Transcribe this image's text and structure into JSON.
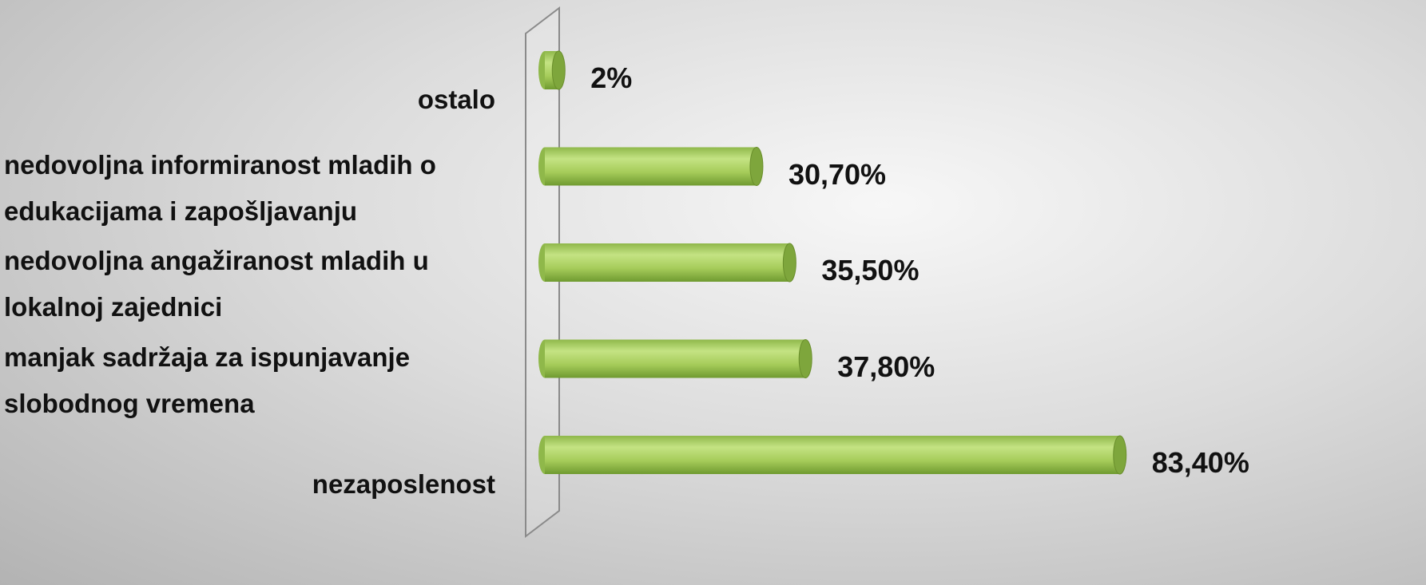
{
  "chart_data": {
    "type": "bar",
    "orientation": "horizontal",
    "categories": [
      "ostalo",
      "nedovoljna informiranost mladih o edukacijama i zapošljavanju",
      "nedovoljna angažiranost mladih u lokalnoj zajednici",
      "manjak sadržaja za ispunjavanje slobodnog vremena",
      "nezaposlenost"
    ],
    "values": [
      2,
      30.7,
      35.5,
      37.8,
      83.4
    ],
    "value_labels": [
      "2%",
      "30,70%",
      "35,50%",
      "37,80%",
      "83,40%"
    ],
    "color": "#a6cc5a"
  }
}
